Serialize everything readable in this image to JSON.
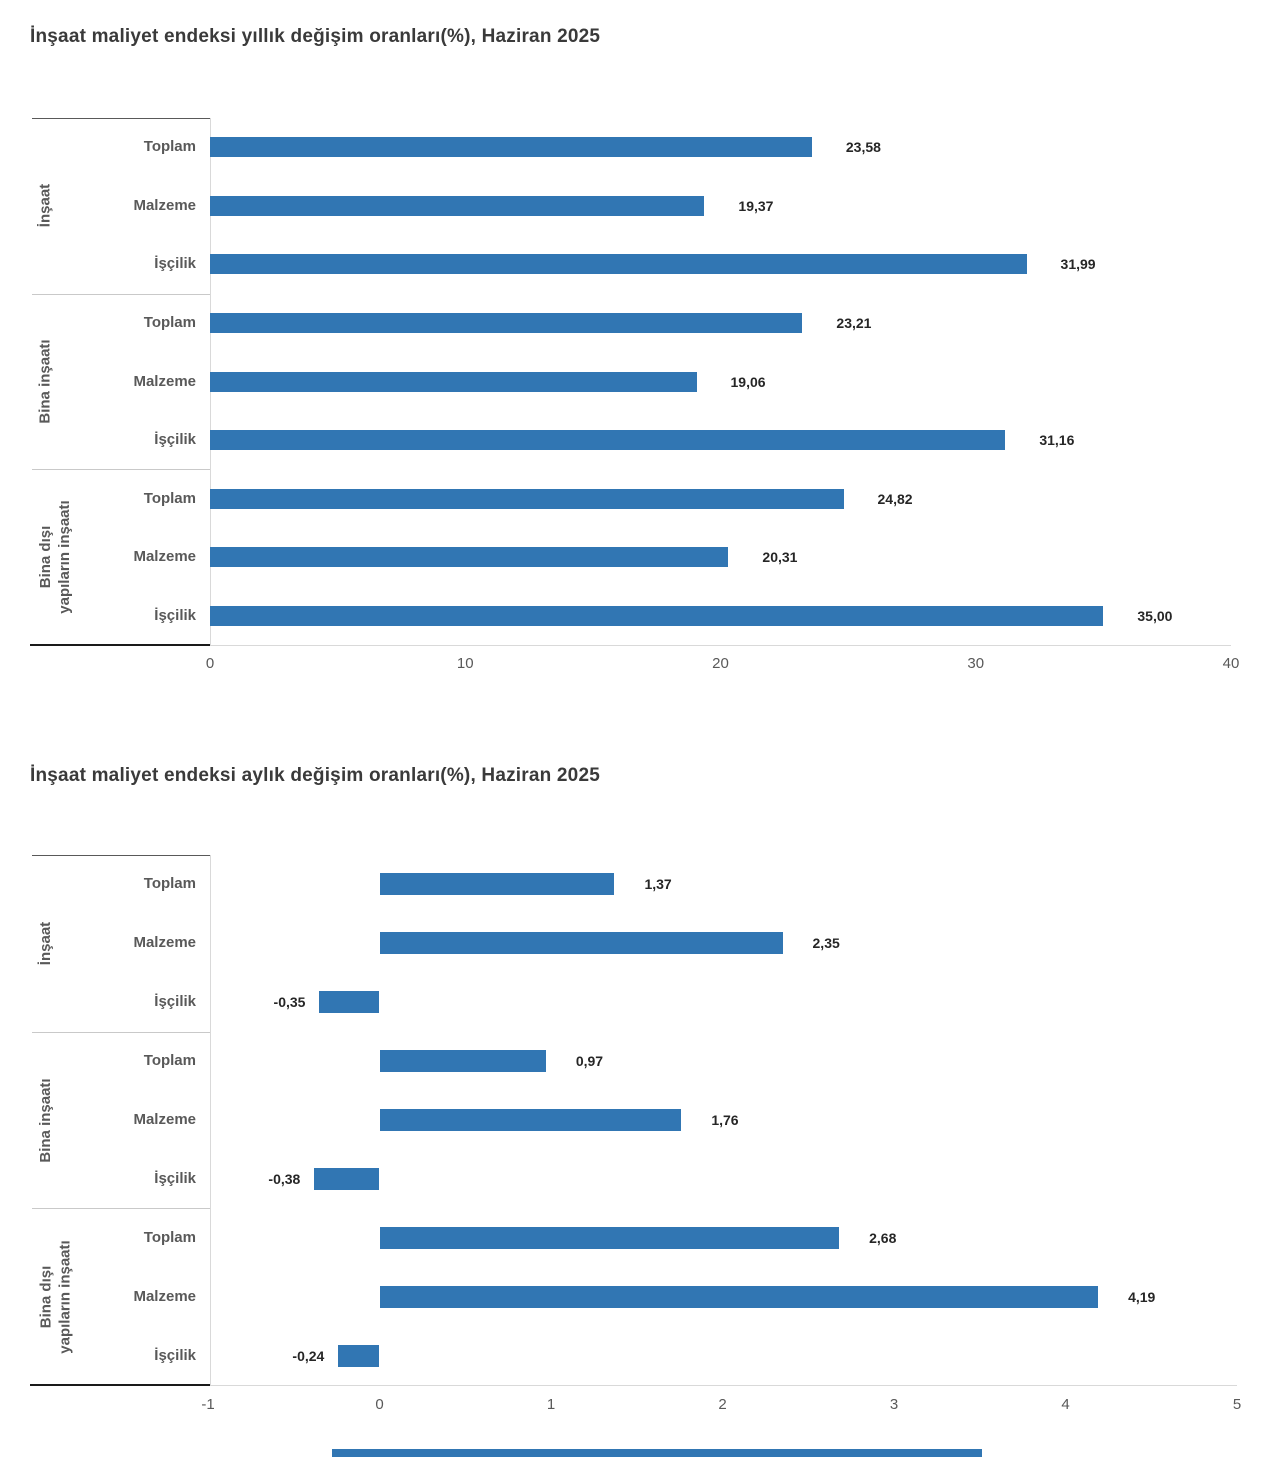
{
  "page": {
    "background": "#ffffff"
  },
  "chart_data": [
    {
      "type": "bar",
      "orientation": "horizontal",
      "title": "İnşaat maliyet endeksi yıllık değişim oranları(%), Haziran 2025",
      "bar_color": "#3176b3",
      "xlim": [
        0,
        40
      ],
      "xticks": [
        {
          "value": 0,
          "label": "0"
        },
        {
          "value": 10,
          "label": "10"
        },
        {
          "value": 20,
          "label": "20"
        },
        {
          "value": 30,
          "label": "30"
        },
        {
          "value": 40,
          "label": "40"
        }
      ],
      "groups": [
        {
          "name": "İnşaat",
          "name_lines": [
            "İnşaat"
          ],
          "items": [
            {
              "label": "Toplam",
              "value": 23.58,
              "display": "23,58"
            },
            {
              "label": "Malzeme",
              "value": 19.37,
              "display": "19,37"
            },
            {
              "label": "İşçilik",
              "value": 31.99,
              "display": "31,99"
            }
          ]
        },
        {
          "name": "Bina inşaatı",
          "name_lines": [
            "Bina inşaatı"
          ],
          "items": [
            {
              "label": "Toplam",
              "value": 23.21,
              "display": "23,21"
            },
            {
              "label": "Malzeme",
              "value": 19.06,
              "display": "19,06"
            },
            {
              "label": "İşçilik",
              "value": 31.16,
              "display": "31,16"
            }
          ]
        },
        {
          "name": "Bina dışı yapıların inşaatı",
          "name_lines": [
            "Bina dışı",
            "yapıların inşaatı"
          ],
          "items": [
            {
              "label": "Toplam",
              "value": 24.82,
              "display": "24,82"
            },
            {
              "label": "Malzeme",
              "value": 20.31,
              "display": "20,31"
            },
            {
              "label": "İşçilik",
              "value": 35.0,
              "display": "35,00"
            }
          ]
        }
      ]
    },
    {
      "type": "bar",
      "orientation": "horizontal",
      "title": "İnşaat maliyet endeksi aylık değişim oranları(%), Haziran 2025",
      "bar_color": "#3176b3",
      "xlim": [
        -1,
        5
      ],
      "xticks": [
        {
          "value": -1,
          "label": "-1"
        },
        {
          "value": 0,
          "label": "0"
        },
        {
          "value": 1,
          "label": "1"
        },
        {
          "value": 2,
          "label": "2"
        },
        {
          "value": 3,
          "label": "3"
        },
        {
          "value": 4,
          "label": "4"
        },
        {
          "value": 5,
          "label": "5"
        }
      ],
      "groups": [
        {
          "name": "İnşaat",
          "name_lines": [
            "İnşaat"
          ],
          "items": [
            {
              "label": "Toplam",
              "value": 1.37,
              "display": "1,37"
            },
            {
              "label": "Malzeme",
              "value": 2.35,
              "display": "2,35"
            },
            {
              "label": "İşçilik",
              "value": -0.35,
              "display": "-0,35"
            }
          ]
        },
        {
          "name": "Bina inşaatı",
          "name_lines": [
            "Bina inşaatı"
          ],
          "items": [
            {
              "label": "Toplam",
              "value": 0.97,
              "display": "0,97"
            },
            {
              "label": "Malzeme",
              "value": 1.76,
              "display": "1,76"
            },
            {
              "label": "İşçilik",
              "value": -0.38,
              "display": "-0,38"
            }
          ]
        },
        {
          "name": "Bina dışı yapıların inşaatı",
          "name_lines": [
            "Bina dışı",
            "yapıların inşaatı"
          ],
          "items": [
            {
              "label": "Toplam",
              "value": 2.68,
              "display": "2,68"
            },
            {
              "label": "Malzeme",
              "value": 4.19,
              "display": "4,19"
            },
            {
              "label": "İşçilik",
              "value": -0.24,
              "display": "-0,24"
            }
          ]
        }
      ]
    }
  ],
  "footer_bar": {
    "color": "#3176b3"
  }
}
